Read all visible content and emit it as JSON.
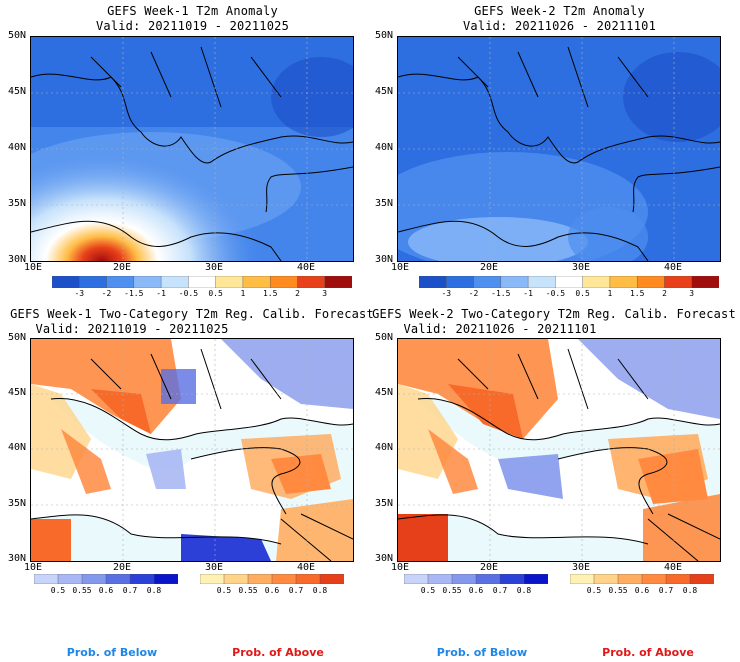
{
  "panels": [
    {
      "title": "GEFS Week-1 T2m Anomaly",
      "valid": "Valid: 20211019 - 20211025"
    },
    {
      "title": "GEFS Week-2 T2m Anomaly",
      "valid": "Valid: 20211026 - 20211101"
    },
    {
      "title": "GEFS Week-1 Two-Category T2m Reg. Calib. Forecast",
      "valid": "Valid: 20211019 - 20211025"
    },
    {
      "title": "GEFS Week-2 Two-Category T2m Reg. Calib. Forecast",
      "valid": "Valid: 20211026 - 20211101"
    }
  ],
  "lat_labels": [
    "50N",
    "45N",
    "40N",
    "35N",
    "30N"
  ],
  "lon_labels": [
    "10E",
    "20E",
    "30E",
    "40E"
  ],
  "anomaly_scale": {
    "labels": [
      "-3",
      "-2",
      "-1.5",
      "-1",
      "-0.5",
      "0.5",
      "1",
      "1.5",
      "2",
      "3"
    ],
    "colors": [
      "#1c50c8",
      "#2d6fe0",
      "#4f8ff0",
      "#8ab9f7",
      "#c7e2fb",
      "#ffffff",
      "#ffe79a",
      "#ffbd45",
      "#ff8a20",
      "#e8401a",
      "#a00d0d"
    ]
  },
  "prob_below_scale": {
    "labels": [
      "0.5",
      "0.55",
      "0.6",
      "0.7",
      "0.8"
    ],
    "colors": [
      "#c8d4fa",
      "#a9b8f4",
      "#8599ec",
      "#5a6fe2",
      "#2c3fd6",
      "#0a14c8"
    ]
  },
  "prob_above_scale": {
    "labels": [
      "0.5",
      "0.55",
      "0.6",
      "0.7",
      "0.8"
    ],
    "colors": [
      "#fff0b4",
      "#ffd48a",
      "#ffad60",
      "#ff8a40",
      "#f76a2a",
      "#e5401a"
    ]
  },
  "footer": {
    "below": "Prob. of Below",
    "above": "Prob. of Above",
    "below_color": "#1f86e6",
    "above_color": "#e01818"
  },
  "colors": {
    "sea": "#eaf9fb",
    "neutral": "#ffffff",
    "grid": "#b0b0b0"
  }
}
